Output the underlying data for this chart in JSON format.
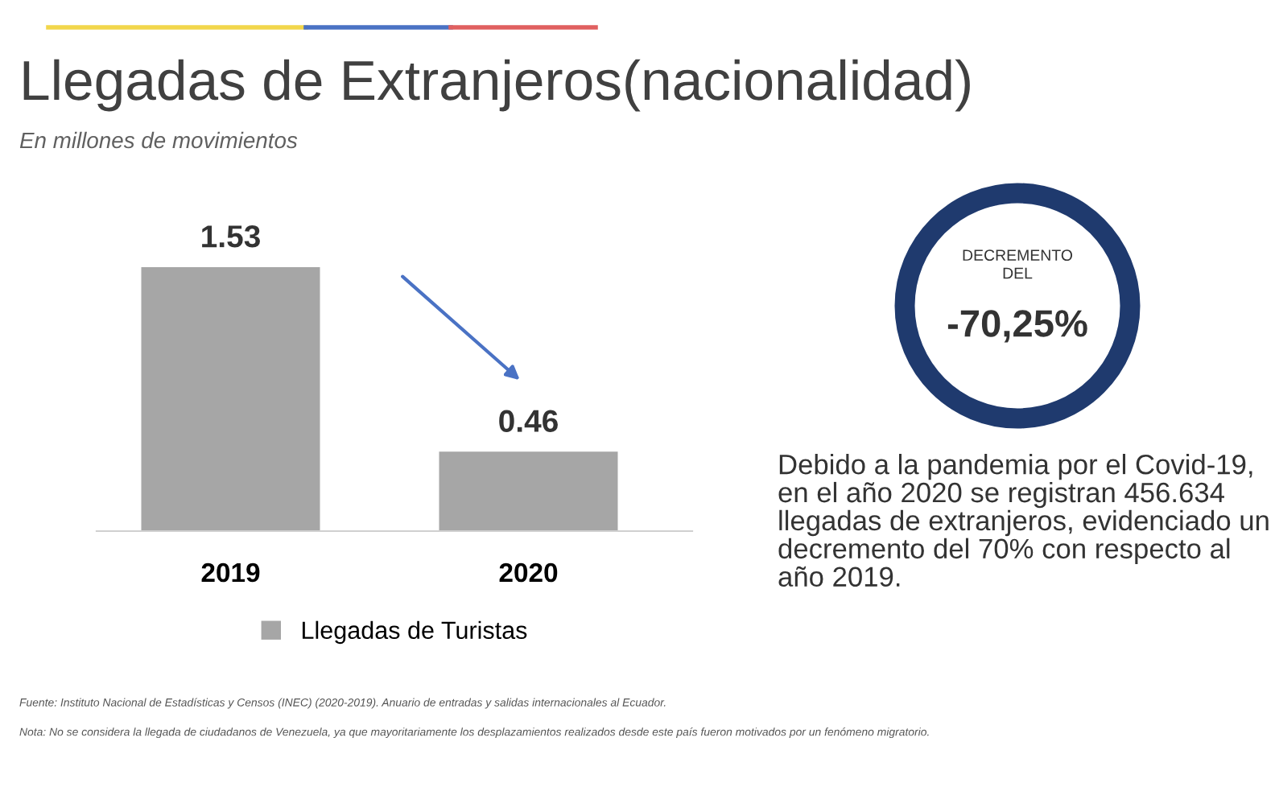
{
  "chart_data": {
    "type": "bar",
    "title": "Llegadas de Extranjeros(nacionalidad)",
    "subtitle": "En millones de movimientos",
    "categories": [
      "2019",
      "2020"
    ],
    "series": [
      {
        "name": "Llegadas de Turistas",
        "color": "#a6a6a6",
        "values": [
          1.53,
          0.46
        ]
      }
    ],
    "data_labels": true,
    "legend": "bottom",
    "grid": false,
    "annotations": [
      "DECREMENTO\nDEL",
      "-70,25%",
      "Debido a la pandemia por el Covid-19, en el año 2020 se registran 456.634 llegadas de extranjeros, evidenciado un decremento del 70% con respecto al año 2019.",
      "Fuente: Instituto Nacional de Estadísticas y Censos (INEC) (2020-2019). Anuario de entradas y salidas internacionales al Ecuador.",
      "Nota: No se considera la llegada de ciudadanos de Venezuela, ya que mayoritariamente los desplazamientos realizados desde este país fueron motivados por un fenómeno migratorio."
    ]
  }
}
